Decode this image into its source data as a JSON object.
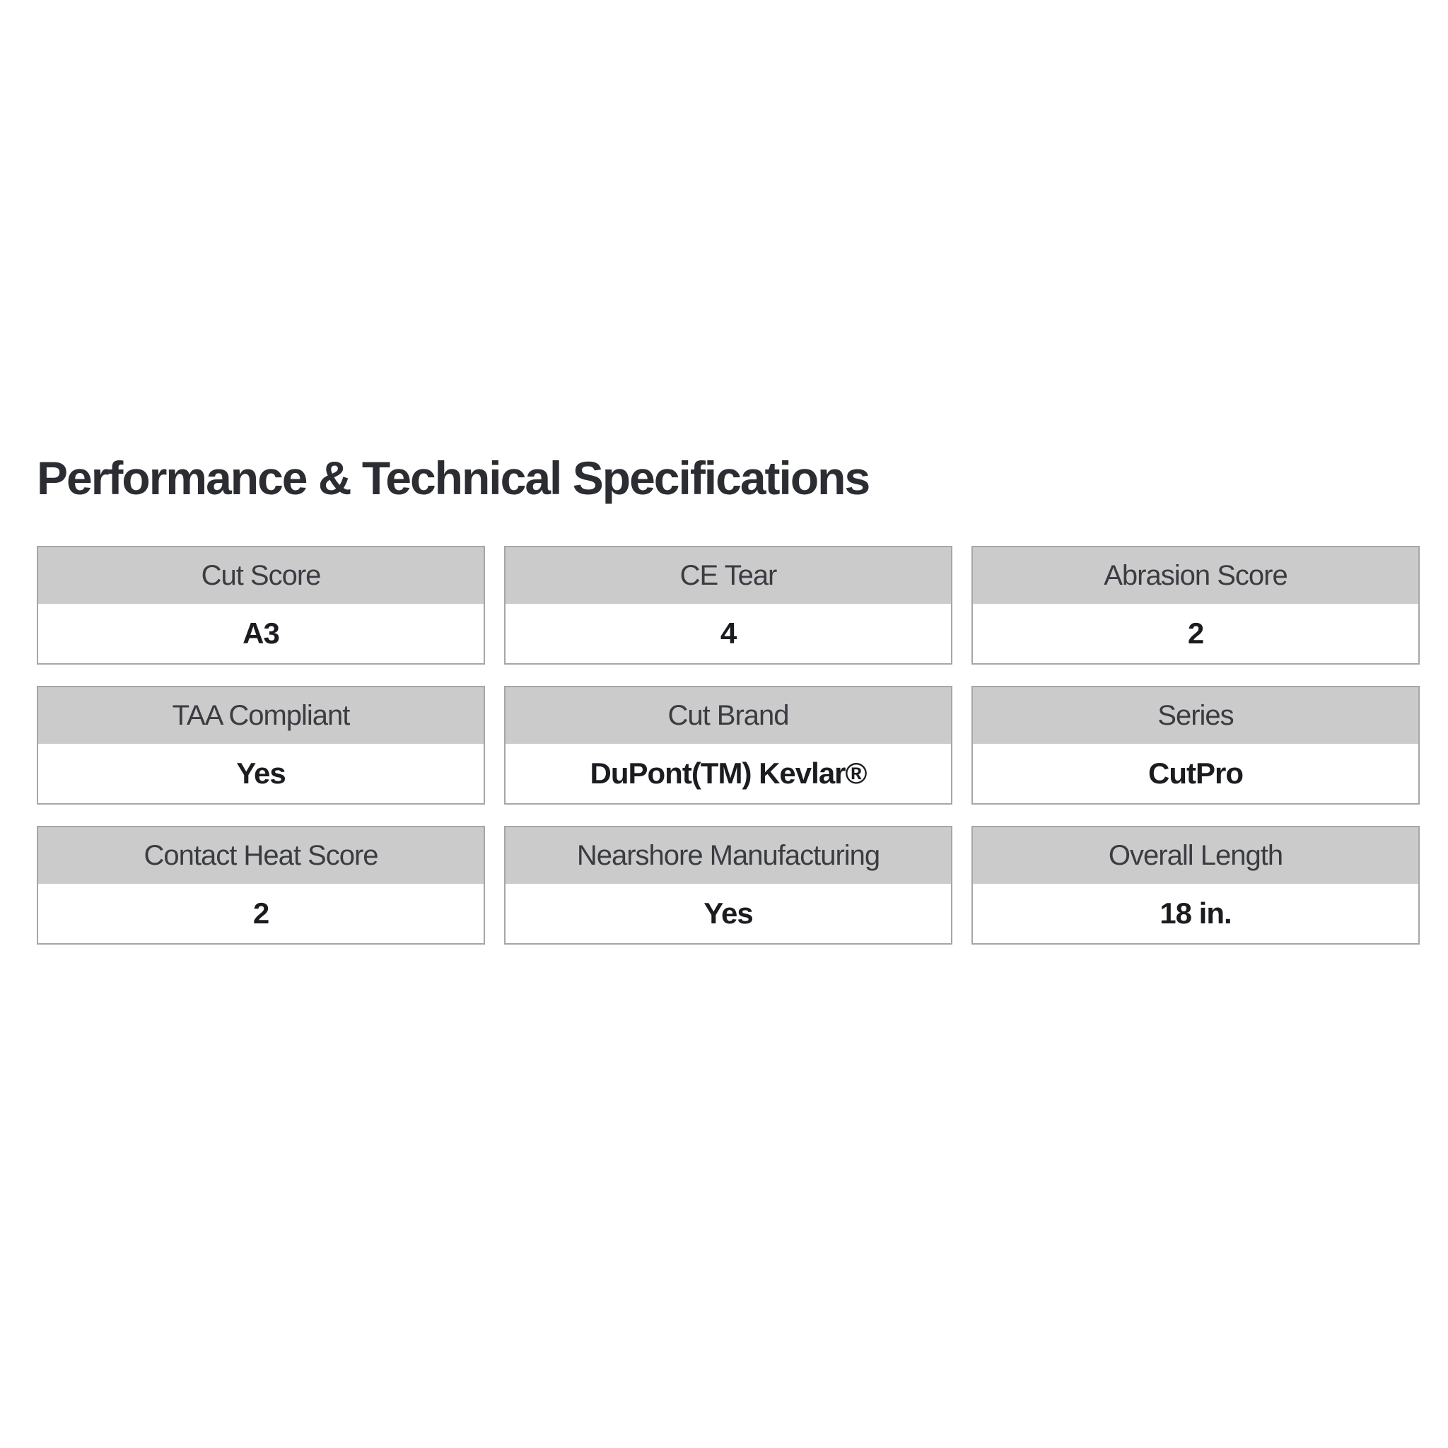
{
  "section": {
    "title": "Performance & Technical Specifications"
  },
  "specs": [
    {
      "label": "Cut Score",
      "value": "A3"
    },
    {
      "label": "CE Tear",
      "value": "4"
    },
    {
      "label": "Abrasion Score",
      "value": "2"
    },
    {
      "label": "TAA Compliant",
      "value": "Yes"
    },
    {
      "label": "Cut Brand",
      "value": "DuPont(TM) Kevlar®"
    },
    {
      "label": "Series",
      "value": "CutPro"
    },
    {
      "label": "Contact Heat Score",
      "value": "2"
    },
    {
      "label": "Nearshore Manufacturing",
      "value": "Yes"
    },
    {
      "label": "Overall Length",
      "value": "18 in."
    }
  ],
  "colors": {
    "header_background": "#cbcbcb",
    "card_border": "#a6a6a6",
    "title_text": "#2b2d33",
    "label_text": "#3a3c42",
    "value_text": "#1b1c20",
    "page_background": "#ffffff"
  }
}
